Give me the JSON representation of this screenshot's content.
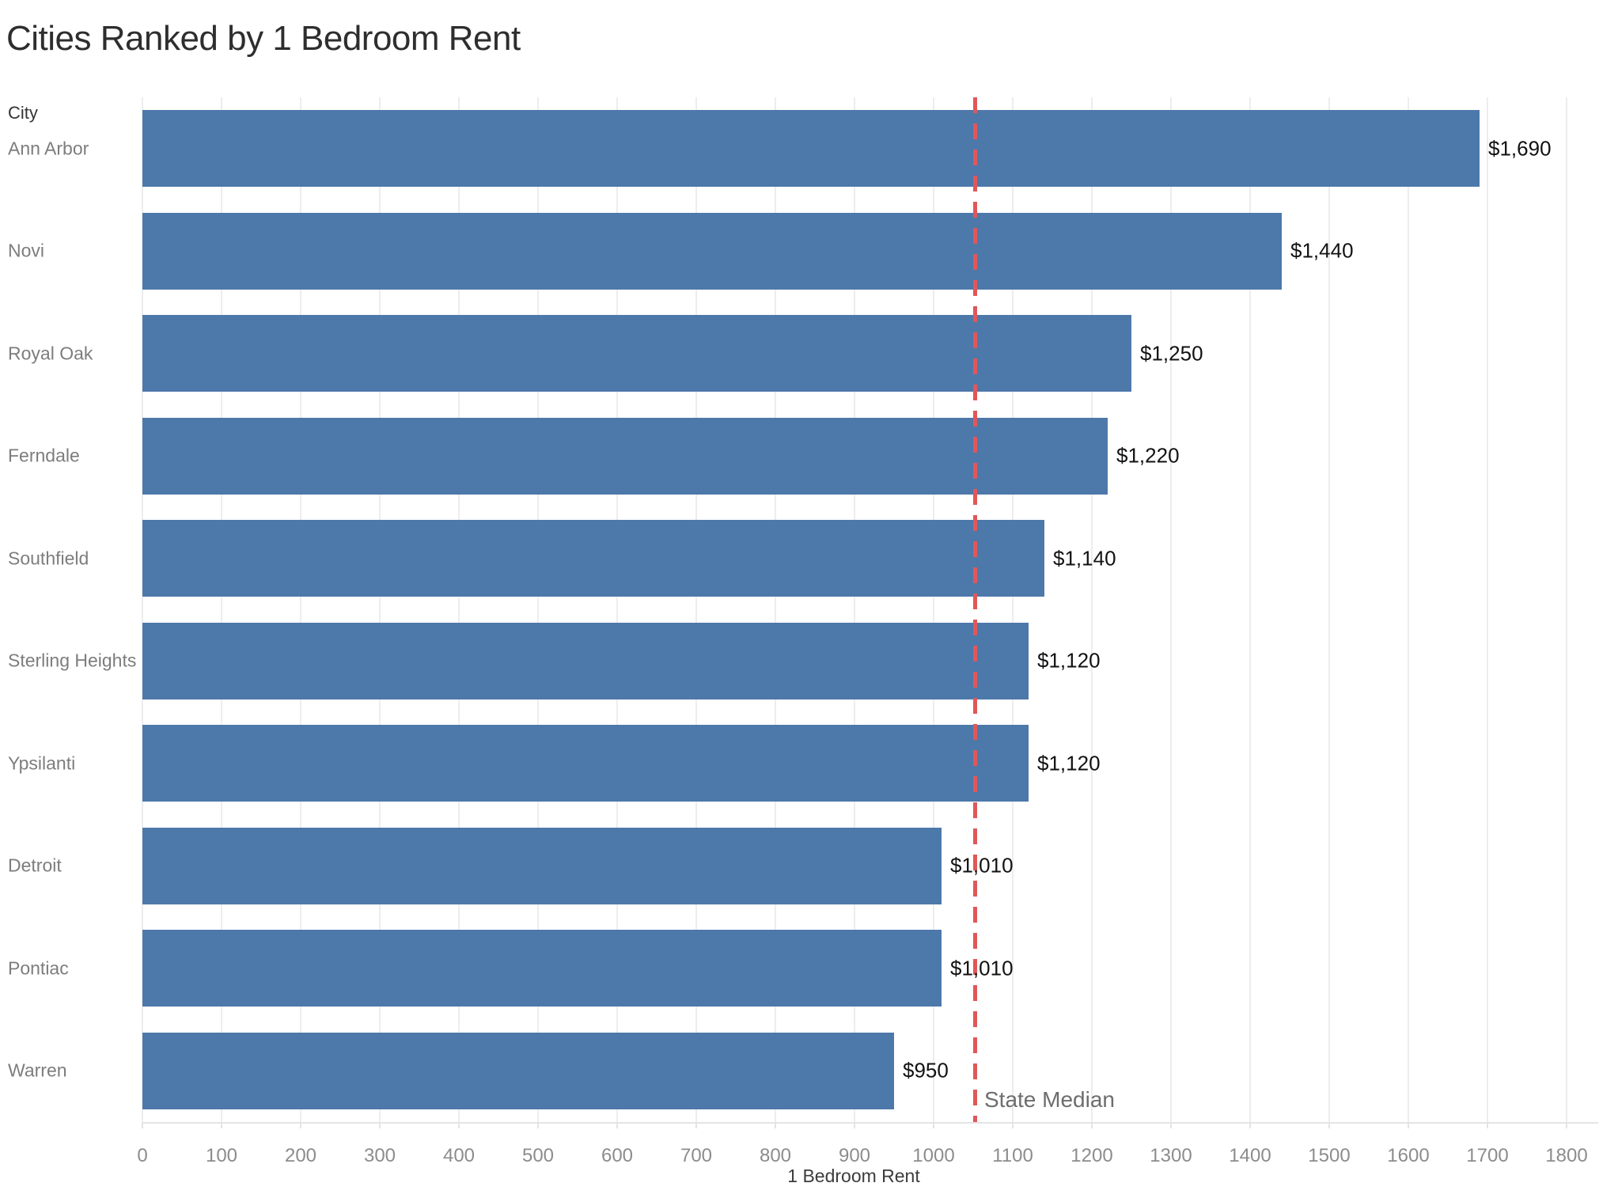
{
  "chart_data": {
    "type": "bar",
    "orientation": "horizontal",
    "title": "Cities Ranked by 1 Bedroom Rent",
    "ylabel": "City",
    "xlabel": "1 Bedroom Rent",
    "categories": [
      "Ann Arbor",
      "Novi",
      "Royal Oak",
      "Ferndale",
      "Southfield",
      "Sterling Heights",
      "Ypsilanti",
      "Detroit",
      "Pontiac",
      "Warren"
    ],
    "values": [
      1690,
      1440,
      1250,
      1220,
      1140,
      1120,
      1120,
      1010,
      1010,
      950
    ],
    "value_labels": [
      "$1,690",
      "$1,440",
      "$1,250",
      "$1,220",
      "$1,140",
      "$1,120",
      "$1,120",
      "$1,010",
      "$1,010",
      "$950"
    ],
    "xlim": [
      0,
      1800
    ],
    "x_ticks": [
      0,
      100,
      200,
      300,
      400,
      500,
      600,
      700,
      800,
      900,
      1000,
      1100,
      1200,
      1300,
      1400,
      1500,
      1600,
      1700,
      1800
    ],
    "grid": "vertical",
    "legend": "none",
    "bar_color": "#4d78aa",
    "reference_line": {
      "label": "State Median",
      "value": 1050,
      "style": "dashed",
      "color": "#e15759"
    }
  }
}
